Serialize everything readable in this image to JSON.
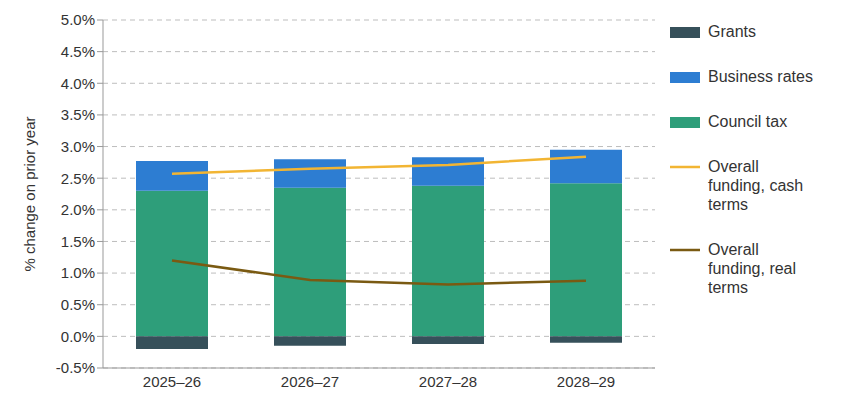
{
  "chart_data": {
    "type": "bar",
    "y_label": "% change on prior year",
    "categories": [
      "2025–26",
      "2026–27",
      "2027–28",
      "2028–29"
    ],
    "series": [
      {
        "name": "Grants",
        "type": "bar",
        "color": "#36505a",
        "values": [
          -0.2,
          -0.15,
          -0.12,
          -0.1
        ]
      },
      {
        "name": "Business rates",
        "type": "bar",
        "color": "#2d7dd2",
        "values": [
          0.47,
          0.45,
          0.45,
          0.53
        ]
      },
      {
        "name": "Council tax",
        "type": "bar",
        "color": "#2e9e7a",
        "values": [
          2.3,
          2.35,
          2.38,
          2.42
        ]
      },
      {
        "name": "Overall funding, cash terms",
        "type": "line",
        "color": "#f2b533",
        "values": [
          2.57,
          2.65,
          2.71,
          2.84
        ]
      },
      {
        "name": "Overall funding, real terms",
        "type": "line",
        "color": "#7a5a12",
        "values": [
          1.2,
          0.89,
          0.82,
          0.88
        ]
      }
    ],
    "ylim": [
      -0.5,
      5
    ],
    "yticks": [
      {
        "value": -0.5,
        "label": "-0.5%"
      },
      {
        "value": 0,
        "label": "0.0%"
      },
      {
        "value": 0.5,
        "label": "0.5%"
      },
      {
        "value": 1,
        "label": "1.0%"
      },
      {
        "value": 1.5,
        "label": "1.5%"
      },
      {
        "value": 2,
        "label": "2.0%"
      },
      {
        "value": 2.5,
        "label": "2.5%"
      },
      {
        "value": 3,
        "label": "3.0%"
      },
      {
        "value": 3.5,
        "label": "3.5%"
      },
      {
        "value": 4,
        "label": "4.0%"
      },
      {
        "value": 4.5,
        "label": "4.5%"
      },
      {
        "value": 5,
        "label": "5.0%"
      }
    ],
    "stacked": true,
    "grid": true,
    "legend": "right"
  }
}
